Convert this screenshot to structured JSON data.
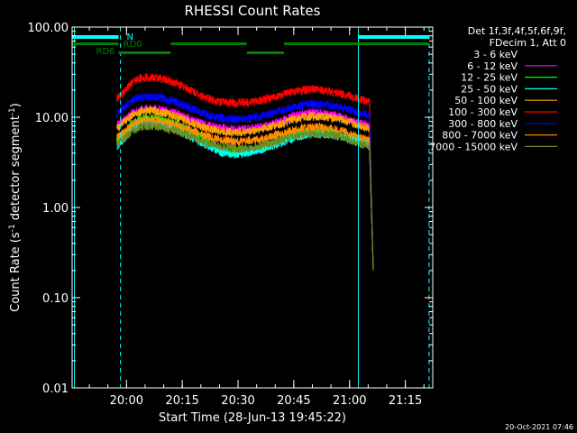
{
  "chart_data": {
    "type": "line",
    "title": "RHESSI Count Rates",
    "ylabel_parts": [
      "Count Rate (s",
      "-1",
      " detector segment",
      "-1",
      ")"
    ],
    "xlabel": "Start Time (28-Jun-13 19:45:22)",
    "yscale": "log",
    "ylim": [
      0.01,
      100
    ],
    "xlim_minutes": [
      0,
      97
    ],
    "y_ticks": [
      {
        "value": 100,
        "label": "100.00"
      },
      {
        "value": 10,
        "label": "10.00"
      },
      {
        "value": 1,
        "label": "1.00"
      },
      {
        "value": 0.1,
        "label": "0.10"
      },
      {
        "value": 0.01,
        "label": "0.01"
      }
    ],
    "x_ticks": [
      {
        "minute": 14.63,
        "label": "20:00"
      },
      {
        "minute": 29.63,
        "label": "20:15"
      },
      {
        "minute": 44.63,
        "label": "20:30"
      },
      {
        "minute": 59.63,
        "label": "20:45"
      },
      {
        "minute": 74.63,
        "label": "21:00"
      },
      {
        "minute": 89.63,
        "label": "21:15"
      }
    ],
    "legend_header": [
      "Det 1f,3f,4f,5f,6f,9f,",
      "FDecim 1, Att 0"
    ],
    "series": [
      {
        "name": "3 - 6 keV",
        "color": "#000000",
        "x": [
          12,
          14,
          16,
          18,
          20,
          24,
          28,
          32,
          36,
          40,
          44,
          48,
          52,
          56,
          60,
          64,
          68,
          72,
          76,
          78,
          80,
          81
        ],
        "values": [
          3.5,
          4.2,
          6,
          7.5,
          8.2,
          8.5,
          7.5,
          6.2,
          5,
          4.5,
          4.3,
          4.4,
          4.8,
          5.5,
          6.5,
          7.8,
          7.8,
          7,
          5.5,
          4,
          3.2,
          0.1
        ]
      },
      {
        "name": "6 - 12 keV",
        "color": "#ff00ff",
        "x": [
          12,
          14,
          16,
          18,
          20,
          24,
          28,
          32,
          36,
          40,
          44,
          48,
          52,
          56,
          60,
          64,
          68,
          72,
          76,
          78,
          80,
          81
        ],
        "values": [
          8,
          9.5,
          11,
          12,
          12.5,
          12.3,
          11,
          9.5,
          8.2,
          7.6,
          7.4,
          7.5,
          8,
          9,
          10.5,
          11.2,
          11,
          10.2,
          8.8,
          8.5,
          8,
          0.2
        ]
      },
      {
        "name": "12 - 25 keV",
        "color": "#00ff00",
        "x": [
          12,
          14,
          16,
          18,
          20,
          24,
          28,
          32,
          36,
          40,
          44,
          48,
          52,
          56,
          60,
          64,
          68,
          72,
          76,
          78,
          80,
          81
        ],
        "values": [
          5.5,
          6.5,
          8.5,
          9.5,
          10,
          9.5,
          8.5,
          7,
          5.5,
          4.2,
          4,
          4.2,
          4.8,
          5.5,
          6.5,
          7,
          7,
          6.5,
          5.8,
          5.5,
          5.2,
          0.2
        ]
      },
      {
        "name": "25 - 50 keV",
        "color": "#00ffff",
        "x": [
          12,
          14,
          16,
          18,
          20,
          24,
          28,
          32,
          36,
          40,
          44,
          48,
          52,
          56,
          60,
          64,
          68,
          72,
          76,
          78,
          80,
          81
        ],
        "values": [
          4.8,
          5.8,
          7.5,
          8.5,
          9,
          8.5,
          7.5,
          6,
          5,
          4.1,
          3.9,
          4.1,
          4.6,
          5.2,
          6,
          6.5,
          6.5,
          6.2,
          5.6,
          5.3,
          5,
          0.2
        ]
      },
      {
        "name": "50 - 100 keV",
        "color": "#ffa500",
        "x": [
          12,
          14,
          16,
          18,
          20,
          24,
          28,
          32,
          36,
          40,
          44,
          48,
          52,
          56,
          60,
          64,
          68,
          72,
          76,
          78,
          80,
          81
        ],
        "values": [
          7.5,
          8.8,
          10.5,
          11.5,
          12,
          11.5,
          10.2,
          8.8,
          7.6,
          7,
          6.8,
          7,
          7.6,
          8.4,
          9.6,
          10.3,
          10.2,
          9.6,
          8.4,
          8,
          7.6,
          0.2
        ]
      },
      {
        "name": "100 - 300 keV",
        "color": "#ff0000",
        "x": [
          12,
          14,
          16,
          18,
          20,
          24,
          28,
          32,
          36,
          40,
          44,
          48,
          52,
          56,
          60,
          64,
          68,
          72,
          76,
          78,
          80,
          81
        ],
        "values": [
          16,
          19,
          24,
          27,
          28,
          27,
          24,
          20,
          16.5,
          14.8,
          14.5,
          14.8,
          15.8,
          17.5,
          19.5,
          20.5,
          20,
          18.5,
          16.5,
          15.5,
          14.8,
          0.2
        ]
      },
      {
        "name": "300 - 800 keV",
        "color": "#0000ff",
        "x": [
          12,
          14,
          16,
          18,
          20,
          24,
          28,
          32,
          36,
          40,
          44,
          48,
          52,
          56,
          60,
          64,
          68,
          72,
          76,
          78,
          80,
          81
        ],
        "values": [
          11,
          12.8,
          15,
          16.5,
          17,
          16.5,
          14.8,
          12.6,
          10.8,
          9.8,
          9.6,
          9.8,
          10.6,
          11.8,
          13.2,
          14,
          13.8,
          13,
          11.6,
          11,
          10.4,
          0.2
        ]
      },
      {
        "name": "800 - 7000 keV",
        "color": "#ff8c00",
        "x": [
          12,
          14,
          16,
          18,
          20,
          24,
          28,
          32,
          36,
          40,
          44,
          48,
          52,
          56,
          60,
          64,
          68,
          72,
          76,
          78,
          80,
          81
        ],
        "values": [
          6,
          6.8,
          8.2,
          9,
          9.4,
          9.1,
          8.2,
          7.2,
          6.2,
          5.6,
          5.4,
          5.5,
          5.9,
          6.5,
          7.3,
          7.8,
          7.7,
          7.2,
          6.3,
          5.9,
          5.6,
          0.2
        ]
      },
      {
        "name": "7000 - 15000 keV",
        "color": "#6b8e23",
        "x": [
          12,
          14,
          16,
          18,
          20,
          24,
          28,
          32,
          36,
          40,
          44,
          48,
          52,
          56,
          60,
          64,
          68,
          72,
          76,
          78,
          80,
          81
        ],
        "values": [
          5,
          5.8,
          7,
          7.8,
          8.2,
          7.9,
          7.1,
          6.1,
          5.2,
          4.7,
          4.5,
          4.6,
          5,
          5.5,
          6.2,
          6.6,
          6.6,
          6.2,
          5.4,
          5,
          4.7,
          0.2
        ]
      }
    ],
    "attenuator_bars": {
      "color": "#00ffff",
      "label": "N",
      "segments": [
        [
          0,
          12.5
        ],
        [
          77,
          96
        ]
      ]
    },
    "rate_decimation_bars": {
      "color": "#008000",
      "labels": [
        "RD0",
        "RD6"
      ],
      "upper": [
        [
          0,
          12.5
        ],
        [
          26.5,
          47
        ],
        [
          57,
          96
        ]
      ],
      "lower": [
        [
          12.5,
          26.5
        ],
        [
          47,
          57
        ]
      ]
    },
    "vertical_lines": {
      "solid": [
        0.6,
        77
      ],
      "dashed": [
        13,
        96
      ]
    }
  },
  "footer": {
    "timestamp": "20-Oct-2021 07:46"
  }
}
